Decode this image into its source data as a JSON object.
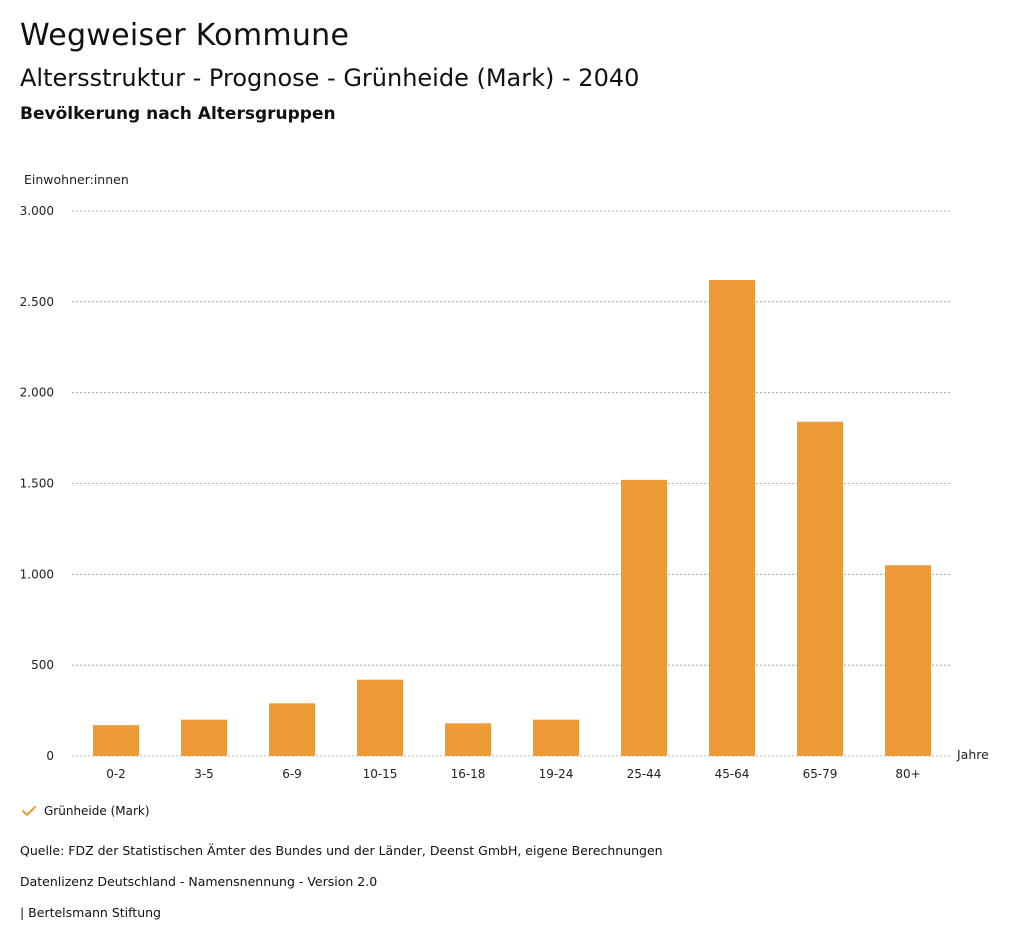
{
  "header": {
    "title": "Wegweiser Kommune",
    "subtitle": "Altersstruktur - Prognose - Grünheide (Mark) - 2040",
    "section": "Bevölkerung nach Altersgruppen"
  },
  "chart_data": {
    "type": "bar",
    "ylabel": "Einwohner:innen",
    "xlabel": "Jahre",
    "ylim": [
      0,
      3000
    ],
    "yticks": [
      0,
      500,
      1000,
      1500,
      2000,
      2500,
      3000
    ],
    "ytick_labels": [
      "0",
      "500",
      "1.000",
      "1.500",
      "2.000",
      "2.500",
      "3.000"
    ],
    "grid": "horizontal dotted",
    "categories": [
      "0-2",
      "3-5",
      "6-9",
      "10-15",
      "16-18",
      "19-24",
      "25-44",
      "45-64",
      "65-79",
      "80+"
    ],
    "series": [
      {
        "name": "Grünheide (Mark)",
        "color": "#ee9a38",
        "values": [
          170,
          200,
          290,
          420,
          180,
          200,
          1520,
          2620,
          1840,
          1050
        ]
      }
    ],
    "legend_position": "bottom-left"
  },
  "legend": {
    "label": "Grünheide (Mark)",
    "icon": "checkmark-icon",
    "color": "#ee9a38"
  },
  "footer": {
    "source": "Quelle: FDZ der Statistischen Ämter des Bundes und der Länder, Deenst GmbH, eigene Berechnungen",
    "license": "Datenlizenz Deutschland - Namensnennung - Version 2.0",
    "brand": "| Bertelsmann Stiftung"
  }
}
